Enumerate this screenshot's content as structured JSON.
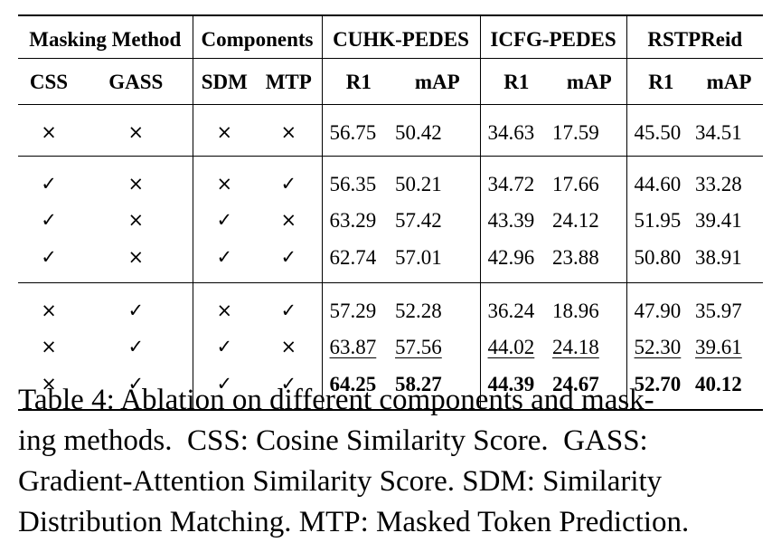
{
  "table": {
    "group_headers": [
      "Masking Method",
      "Components",
      "CUHK-PEDES",
      "ICFG-PEDES",
      "RSTPReid"
    ],
    "sub_headers": [
      "CSS",
      "GASS",
      "SDM",
      "MTP",
      "R1",
      "mAP",
      "R1",
      "mAP",
      "R1",
      "mAP"
    ],
    "rows": [
      {
        "css": "×",
        "gass": "×",
        "sdm": "×",
        "mtp": "×",
        "cuhk_r1": "56.75",
        "cuhk_map": "50.42",
        "icfg_r1": "34.63",
        "icfg_map": "17.59",
        "rstp_r1": "45.50",
        "rstp_map": "34.51"
      },
      {
        "css": "✓",
        "gass": "×",
        "sdm": "×",
        "mtp": "✓",
        "cuhk_r1": "56.35",
        "cuhk_map": "50.21",
        "icfg_r1": "34.72",
        "icfg_map": "17.66",
        "rstp_r1": "44.60",
        "rstp_map": "33.28"
      },
      {
        "css": "✓",
        "gass": "×",
        "sdm": "✓",
        "mtp": "×",
        "cuhk_r1": "63.29",
        "cuhk_map": "57.42",
        "icfg_r1": "43.39",
        "icfg_map": "24.12",
        "rstp_r1": "51.95",
        "rstp_map": "39.41"
      },
      {
        "css": "✓",
        "gass": "×",
        "sdm": "✓",
        "mtp": "✓",
        "cuhk_r1": "62.74",
        "cuhk_map": "57.01",
        "icfg_r1": "42.96",
        "icfg_map": "23.88",
        "rstp_r1": "50.80",
        "rstp_map": "38.91"
      },
      {
        "css": "×",
        "gass": "✓",
        "sdm": "×",
        "mtp": "✓",
        "cuhk_r1": "57.29",
        "cuhk_map": "52.28",
        "icfg_r1": "36.24",
        "icfg_map": "18.96",
        "rstp_r1": "47.90",
        "rstp_map": "35.97"
      },
      {
        "css": "×",
        "gass": "✓",
        "sdm": "✓",
        "mtp": "×",
        "cuhk_r1": "63.87",
        "cuhk_map": "57.56",
        "icfg_r1": "44.02",
        "icfg_map": "24.18",
        "rstp_r1": "52.30",
        "rstp_map": "39.61"
      },
      {
        "css": "×",
        "gass": "✓",
        "sdm": "✓",
        "mtp": "✓",
        "cuhk_r1": "64.25",
        "cuhk_map": "58.27",
        "icfg_r1": "44.39",
        "icfg_map": "24.67",
        "rstp_r1": "52.70",
        "rstp_map": "40.12"
      }
    ]
  },
  "caption": {
    "lines": [
      "Table 4: Ablation on different components and mask-",
      "ing methods.  CSS: Cosine Similarity Score.  GASS:",
      "Gradient-Attention Similarity Score. SDM: Similarity",
      "Distribution Matching. MTP: Masked Token Prediction."
    ]
  }
}
